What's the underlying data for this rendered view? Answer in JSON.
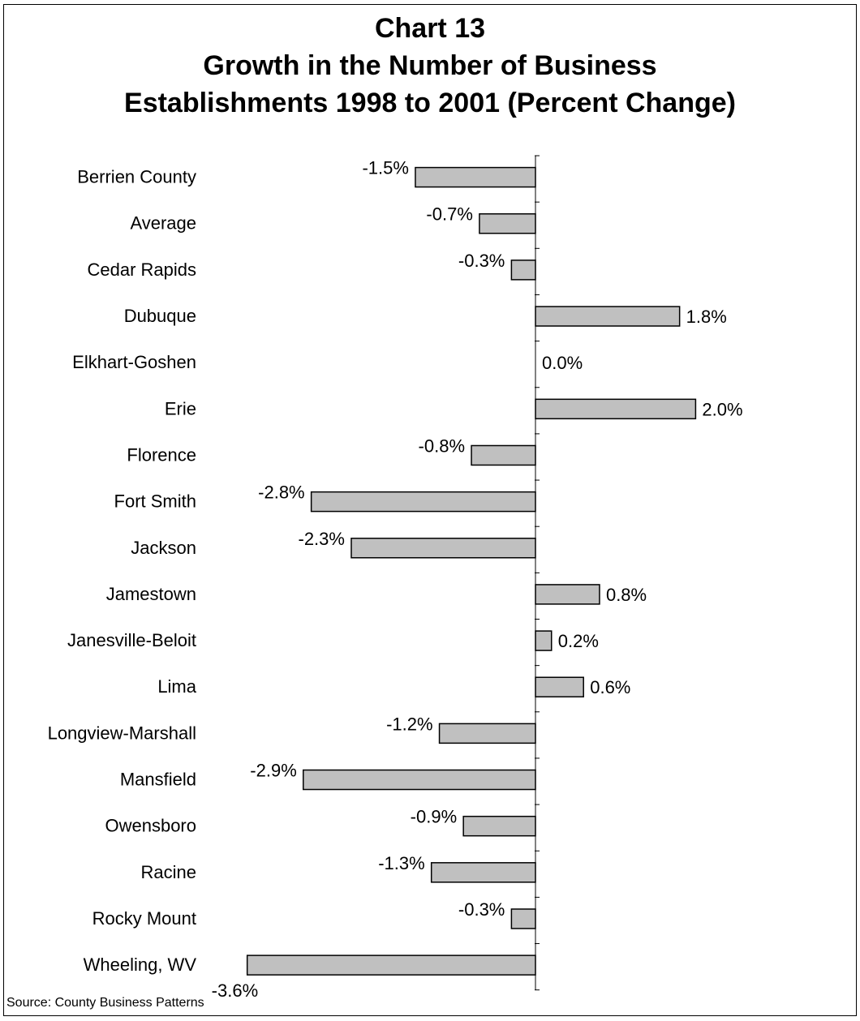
{
  "chart_data": {
    "type": "bar",
    "orientation": "horizontal",
    "title_lines": [
      "Chart 13",
      "Growth in the Number of Business",
      "Establishments 1998 to 2001 (Percent Change)"
    ],
    "categories": [
      "Berrien County",
      "Average",
      "Cedar Rapids",
      "Dubuque",
      "Elkhart-Goshen",
      "Erie",
      "Florence",
      "Fort Smith",
      "Jackson",
      "Jamestown",
      "Janesville-Beloit",
      "Lima",
      "Longview-Marshall",
      "Mansfield",
      "Owensboro",
      "Racine",
      "Rocky Mount",
      "Wheeling, WV"
    ],
    "values": [
      -1.5,
      -0.7,
      -0.3,
      1.8,
      0.0,
      2.0,
      -0.8,
      -2.8,
      -2.3,
      0.8,
      0.2,
      0.6,
      -1.2,
      -2.9,
      -0.9,
      -1.3,
      -0.3,
      -3.6
    ],
    "labels": [
      "-1.5%",
      "-0.7%",
      "-0.3%",
      "1.8%",
      "0.0%",
      "2.0%",
      "-0.8%",
      "-2.8%",
      "-2.3%",
      "0.8%",
      "0.2%",
      "0.6%",
      "-1.2%",
      "-2.9%",
      "-0.9%",
      "-1.3%",
      "-0.3%",
      "-3.6%"
    ],
    "bar_color": "#c0c0c0",
    "grid": false,
    "legend": "none"
  },
  "footer": {
    "source": "Source: County Business Patterns"
  }
}
